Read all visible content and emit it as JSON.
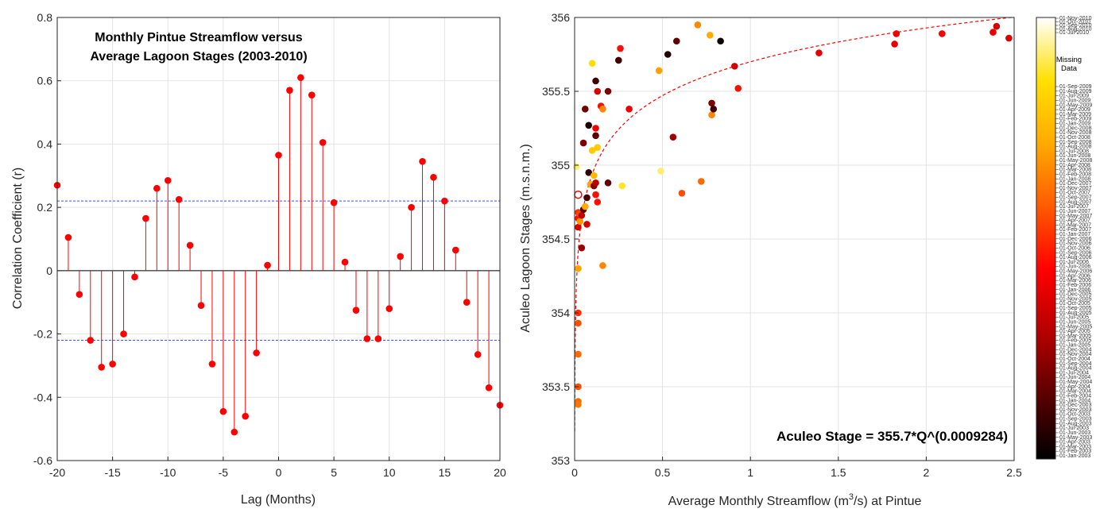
{
  "chart_data": [
    {
      "type": "stem",
      "title_lines": [
        "Monthly Pintue Streamflow versus",
        "Average Lagoon Stages (2003-2010)"
      ],
      "xlabel": "Lag (Months)",
      "ylabel": "Correlation Coefficient (r)",
      "xlim": [
        -20,
        20
      ],
      "ylim": [
        -0.6,
        0.8
      ],
      "xticks": [
        -20,
        -15,
        -10,
        -5,
        0,
        5,
        10,
        15,
        20
      ],
      "yticks": [
        -0.6,
        -0.4,
        -0.2,
        0,
        0.2,
        0.4,
        0.6,
        0.8
      ],
      "xtick_labels": [
        "-20",
        "-15",
        "-10",
        "-5",
        "0",
        "5",
        "10",
        "15",
        "20"
      ],
      "ytick_labels": [
        "-0.6",
        "-0.4",
        "-0.2",
        "0",
        "0.2",
        "0.4",
        "0.6",
        "0.8"
      ],
      "grid": true,
      "marker_color": "#ff0000",
      "confidence_bounds": [
        0.22,
        -0.22
      ],
      "confidence_color": "#3b50ff",
      "x": [
        -20,
        -19,
        -18,
        -17,
        -16,
        -15,
        -14,
        -13,
        -12,
        -11,
        -10,
        -9,
        -8,
        -7,
        -6,
        -5,
        -4,
        -3,
        -2,
        -1,
        0,
        1,
        2,
        3,
        4,
        5,
        6,
        7,
        8,
        9,
        10,
        11,
        12,
        13,
        14,
        15,
        16,
        17,
        18,
        19,
        20
      ],
      "y": [
        0.27,
        0.105,
        -0.075,
        -0.22,
        -0.305,
        -0.295,
        -0.2,
        -0.02,
        0.165,
        0.26,
        0.285,
        0.225,
        0.08,
        -0.11,
        -0.295,
        -0.445,
        -0.51,
        -0.46,
        -0.26,
        0.017,
        0.365,
        0.57,
        0.61,
        0.555,
        0.405,
        0.215,
        0.027,
        -0.125,
        -0.215,
        -0.215,
        -0.12,
        0.045,
        0.2,
        0.345,
        0.295,
        0.22,
        0.065,
        -0.1,
        -0.265,
        -0.37,
        -0.425
      ]
    },
    {
      "type": "scatter",
      "xlabel_parts": [
        "Average Monthly Streamflow (m",
        "3",
        "/s) at Pintue"
      ],
      "ylabel": "Aculeo Lagoon Stages (m.s.n.m.)",
      "xlim": [
        0,
        2.5
      ],
      "ylim": [
        353,
        356
      ],
      "xticks": [
        0,
        0.5,
        1,
        1.5,
        2,
        2.5
      ],
      "yticks": [
        353,
        353.5,
        354,
        354.5,
        355,
        355.5,
        356
      ],
      "xtick_labels": [
        "0",
        "0.5",
        "1",
        "1.5",
        "2",
        "2.5"
      ],
      "ytick_labels": [
        "353",
        "353.5",
        "354",
        "354.5",
        "355",
        "355.5",
        "356"
      ],
      "grid": true,
      "fit_equation": "Aculeo Stage = 355.7*Q^(0.0009284)",
      "fit": {
        "a": 355.7,
        "b": 0.0009284
      },
      "fit_color": "#ff0000",
      "colorbar": {
        "missing_label_lines": [
          "Missing",
          "Data"
        ],
        "top_labels": [
          "01-Nov-2010",
          "01-Oct-2010",
          "01-Sep-2010",
          "01-Aug-2010",
          "01-Jul-2010"
        ],
        "bottom_labels": [
          "01-Sep-2009",
          "01-Aug-2009",
          "01-Jul-2009",
          "01-Jun-2009",
          "01-May-2009",
          "01-Apr-2009",
          "01-Mar-2009",
          "01-Feb-2009",
          "01-Jan-2009",
          "01-Dec-2008",
          "01-Nov-2008",
          "01-Oct-2008",
          "01-Sep-2008",
          "01-Aug-2008",
          "01-Jul-2008",
          "01-Jun-2008",
          "01-May-2008",
          "01-Apr-2008",
          "01-Mar-2008",
          "01-Feb-2008",
          "01-Jan-2008",
          "01-Dec-2007",
          "01-Nov-2007",
          "01-Oct-2007",
          "01-Sep-2007",
          "01-Aug-2007",
          "01-Jul-2007",
          "01-Jun-2007",
          "01-May-2007",
          "01-Apr-2007",
          "01-Mar-2007",
          "01-Feb-2007",
          "01-Jan-2007",
          "01-Dec-2006",
          "01-Nov-2006",
          "01-Oct-2006",
          "01-Sep-2006",
          "01-Aug-2006",
          "01-Jul-2006",
          "01-Jun-2006",
          "01-May-2006",
          "01-Apr-2006",
          "01-Mar-2006",
          "01-Feb-2006",
          "01-Jan-2006",
          "01-Dec-2005",
          "01-Nov-2005",
          "01-Oct-2005",
          "01-Sep-2005",
          "01-Aug-2005",
          "01-Jul-2005",
          "01-Jun-2005",
          "01-May-2005",
          "01-Apr-2005",
          "01-Mar-2005",
          "01-Feb-2005",
          "01-Jan-2005",
          "01-Dec-2004",
          "01-Nov-2004",
          "01-Oct-2004",
          "01-Sep-2004",
          "01-Aug-2004",
          "01-Jul-2004",
          "01-Jun-2004",
          "01-May-2004",
          "01-Apr-2004",
          "01-Mar-2004",
          "01-Feb-2004",
          "01-Jan-2004",
          "01-Dec-2003",
          "01-Nov-2003",
          "01-Oct-2003",
          "01-Sep-2003",
          "01-Aug-2003",
          "01-Jul-2003",
          "01-Jun-2003",
          "01-May-2003",
          "01-Apr-2003",
          "01-Mar-2003",
          "01-Feb-2003",
          "01-Jan-2003"
        ],
        "colormap": [
          "#000000",
          "#5a0000",
          "#b40000",
          "#ff0000",
          "#ff5a00",
          "#ffaa00",
          "#ffe000",
          "#ffffff"
        ]
      },
      "points": [
        {
          "x": 0.01,
          "y": 354.99,
          "c": 0.92
        },
        {
          "x": 0.02,
          "y": 354.3,
          "c": 0.7
        },
        {
          "x": 0.02,
          "y": 354.0,
          "c": 0.5
        },
        {
          "x": 0.02,
          "y": 353.93,
          "c": 0.55
        },
        {
          "x": 0.02,
          "y": 353.72,
          "c": 0.6
        },
        {
          "x": 0.02,
          "y": 353.5,
          "c": 0.55
        },
        {
          "x": 0.02,
          "y": 353.4,
          "c": 0.6
        },
        {
          "x": 0.02,
          "y": 353.38,
          "c": 0.62
        },
        {
          "x": 0.02,
          "y": 354.58,
          "c": 0.35
        },
        {
          "x": 0.02,
          "y": 354.64,
          "c": 0.45
        },
        {
          "x": 0.02,
          "y": 354.68,
          "c": 0.5
        },
        {
          "x": 0.03,
          "y": 354.67,
          "c": 0.55
        },
        {
          "x": 0.03,
          "y": 354.62,
          "c": 0.68
        },
        {
          "x": 0.04,
          "y": 354.44,
          "c": 0.25
        },
        {
          "x": 0.04,
          "y": 354.66,
          "c": 0.3
        },
        {
          "x": 0.05,
          "y": 354.7,
          "c": 0.15
        },
        {
          "x": 0.05,
          "y": 355.15,
          "c": 0.2
        },
        {
          "x": 0.06,
          "y": 354.72,
          "c": 0.72
        },
        {
          "x": 0.06,
          "y": 355.38,
          "c": 0.18
        },
        {
          "x": 0.07,
          "y": 354.78,
          "c": 0.12
        },
        {
          "x": 0.07,
          "y": 354.6,
          "c": 0.35
        },
        {
          "x": 0.08,
          "y": 354.95,
          "c": 0.08
        },
        {
          "x": 0.08,
          "y": 355.27,
          "c": 0.05
        },
        {
          "x": 0.09,
          "y": 354.87,
          "c": 0.7
        },
        {
          "x": 0.1,
          "y": 355.1,
          "c": 0.8
        },
        {
          "x": 0.1,
          "y": 355.69,
          "c": 0.85
        },
        {
          "x": 0.11,
          "y": 354.93,
          "c": 0.75
        },
        {
          "x": 0.11,
          "y": 354.86,
          "c": 0.2
        },
        {
          "x": 0.12,
          "y": 355.57,
          "c": 0.1
        },
        {
          "x": 0.12,
          "y": 355.25,
          "c": 0.4
        },
        {
          "x": 0.12,
          "y": 355.2,
          "c": 0.15
        },
        {
          "x": 0.12,
          "y": 354.88,
          "c": 0.3
        },
        {
          "x": 0.12,
          "y": 354.8,
          "c": 0.45
        },
        {
          "x": 0.13,
          "y": 355.5,
          "c": 0.35
        },
        {
          "x": 0.13,
          "y": 355.12,
          "c": 0.8
        },
        {
          "x": 0.13,
          "y": 354.75,
          "c": 0.45
        },
        {
          "x": 0.15,
          "y": 355.4,
          "c": 0.45
        },
        {
          "x": 0.16,
          "y": 355.38,
          "c": 0.65
        },
        {
          "x": 0.16,
          "y": 354.32,
          "c": 0.65
        },
        {
          "x": 0.19,
          "y": 355.5,
          "c": 0.2
        },
        {
          "x": 0.19,
          "y": 354.88,
          "c": 0.15
        },
        {
          "x": 0.25,
          "y": 355.71,
          "c": 0.1
        },
        {
          "x": 0.26,
          "y": 355.79,
          "c": 0.45
        },
        {
          "x": 0.27,
          "y": 354.86,
          "c": 0.88
        },
        {
          "x": 0.31,
          "y": 355.38,
          "c": 0.4
        },
        {
          "x": 0.48,
          "y": 355.64,
          "c": 0.7
        },
        {
          "x": 0.49,
          "y": 354.96,
          "c": 0.92
        },
        {
          "x": 0.53,
          "y": 355.75,
          "c": 0.05
        },
        {
          "x": 0.56,
          "y": 355.19,
          "c": 0.25
        },
        {
          "x": 0.58,
          "y": 355.84,
          "c": 0.15
        },
        {
          "x": 0.61,
          "y": 354.81,
          "c": 0.55
        },
        {
          "x": 0.7,
          "y": 355.95,
          "c": 0.65
        },
        {
          "x": 0.72,
          "y": 354.89,
          "c": 0.6
        },
        {
          "x": 0.77,
          "y": 355.88,
          "c": 0.72
        },
        {
          "x": 0.78,
          "y": 355.42,
          "c": 0.2
        },
        {
          "x": 0.78,
          "y": 355.34,
          "c": 0.65
        },
        {
          "x": 0.79,
          "y": 355.38,
          "c": 0.1
        },
        {
          "x": 0.83,
          "y": 355.84,
          "c": 0.02
        },
        {
          "x": 0.91,
          "y": 355.67,
          "c": 0.35
        },
        {
          "x": 0.93,
          "y": 355.52,
          "c": 0.45
        },
        {
          "x": 1.39,
          "y": 355.76,
          "c": 0.38
        },
        {
          "x": 1.82,
          "y": 355.82,
          "c": 0.38
        },
        {
          "x": 1.83,
          "y": 355.89,
          "c": 0.4
        },
        {
          "x": 2.09,
          "y": 355.89,
          "c": 0.42
        },
        {
          "x": 2.38,
          "y": 355.9,
          "c": 0.38
        },
        {
          "x": 2.4,
          "y": 355.94,
          "c": 0.35
        },
        {
          "x": 2.47,
          "y": 355.86,
          "c": 0.35
        }
      ]
    }
  ]
}
